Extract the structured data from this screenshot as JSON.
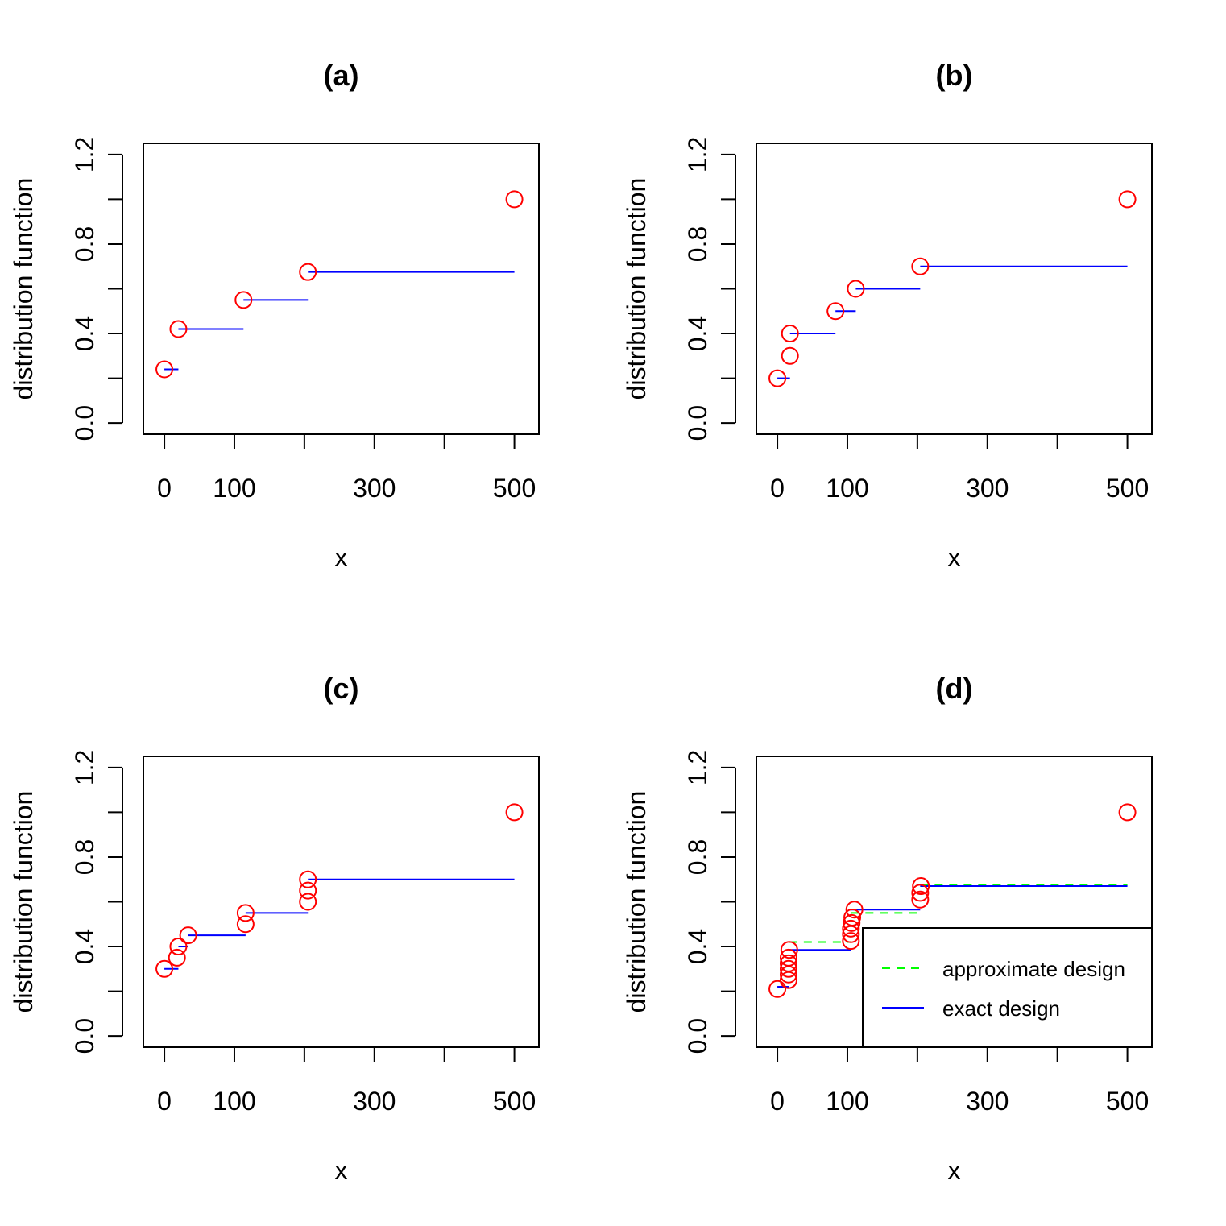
{
  "colors": {
    "points": "#ff0000",
    "exact": "#0000ff",
    "approximate": "#00ff00",
    "axes": "#000000"
  },
  "chart_data": [
    {
      "type": "step",
      "title": "(a)",
      "xlabel": "x",
      "ylabel": "distribution function",
      "xlim": [
        -30,
        535
      ],
      "ylim": [
        -0.05,
        1.25
      ],
      "xticks": [
        0,
        100,
        200,
        300,
        400,
        500
      ],
      "xtick_labels": [
        "0",
        "100",
        "",
        "300",
        "",
        "500"
      ],
      "yticks": [
        0,
        0.4,
        0.8,
        1.2
      ],
      "ytick_labels": [
        "0.0",
        "0.4",
        "0.8",
        "1.2"
      ],
      "extra_yticks": [
        0.2,
        0.6,
        1.0
      ],
      "points": {
        "x": [
          0,
          20,
          113,
          205,
          500
        ],
        "y": [
          0.24,
          0.42,
          0.55,
          0.675,
          1.0
        ]
      },
      "steps": [
        {
          "x0": 0,
          "x1": 20,
          "y": 0.24
        },
        {
          "x0": 20,
          "x1": 113,
          "y": 0.42
        },
        {
          "x0": 113,
          "x1": 205,
          "y": 0.55
        },
        {
          "x0": 205,
          "x1": 500,
          "y": 0.675
        }
      ]
    },
    {
      "type": "step",
      "title": "(b)",
      "xlabel": "x",
      "ylabel": "distribution function",
      "xlim": [
        -30,
        535
      ],
      "ylim": [
        -0.05,
        1.25
      ],
      "xticks": [
        0,
        100,
        200,
        300,
        400,
        500
      ],
      "xtick_labels": [
        "0",
        "100",
        "",
        "300",
        "",
        "500"
      ],
      "yticks": [
        0,
        0.4,
        0.8,
        1.2
      ],
      "ytick_labels": [
        "0.0",
        "0.4",
        "0.8",
        "1.2"
      ],
      "extra_yticks": [
        0.2,
        0.6,
        1.0
      ],
      "points": {
        "x": [
          0,
          18,
          18,
          83,
          112,
          204,
          500
        ],
        "y": [
          0.2,
          0.3,
          0.4,
          0.5,
          0.6,
          0.7,
          1.0
        ]
      },
      "steps": [
        {
          "x0": 0,
          "x1": 18,
          "y": 0.2
        },
        {
          "x0": 18,
          "x1": 83,
          "y": 0.4
        },
        {
          "x0": 83,
          "x1": 112,
          "y": 0.5
        },
        {
          "x0": 112,
          "x1": 204,
          "y": 0.6
        },
        {
          "x0": 204,
          "x1": 500,
          "y": 0.7
        }
      ]
    },
    {
      "type": "step",
      "title": "(c)",
      "xlabel": "x",
      "ylabel": "distribution function",
      "xlim": [
        -30,
        535
      ],
      "ylim": [
        -0.05,
        1.25
      ],
      "xticks": [
        0,
        100,
        200,
        300,
        400,
        500
      ],
      "xtick_labels": [
        "0",
        "100",
        "",
        "300",
        "",
        "500"
      ],
      "yticks": [
        0,
        0.4,
        0.8,
        1.2
      ],
      "ytick_labels": [
        "0.0",
        "0.4",
        "0.8",
        "1.2"
      ],
      "extra_yticks": [
        0.2,
        0.6,
        1.0
      ],
      "points": {
        "x": [
          0,
          18,
          20,
          34,
          116,
          116,
          205,
          205,
          205,
          500
        ],
        "y": [
          0.3,
          0.35,
          0.4,
          0.45,
          0.5,
          0.55,
          0.6,
          0.65,
          0.7,
          1.0
        ]
      },
      "steps": [
        {
          "x0": 0,
          "x1": 20,
          "y": 0.3
        },
        {
          "x0": 20,
          "x1": 34,
          "y": 0.4
        },
        {
          "x0": 34,
          "x1": 116,
          "y": 0.45
        },
        {
          "x0": 116,
          "x1": 205,
          "y": 0.55
        },
        {
          "x0": 205,
          "x1": 500,
          "y": 0.7
        }
      ]
    },
    {
      "type": "step",
      "title": "(d)",
      "xlabel": "x",
      "ylabel": "distribution function",
      "xlim": [
        -30,
        535
      ],
      "ylim": [
        -0.05,
        1.25
      ],
      "xticks": [
        0,
        100,
        200,
        300,
        400,
        500
      ],
      "xtick_labels": [
        "0",
        "100",
        "",
        "300",
        "",
        "500"
      ],
      "yticks": [
        0,
        0.4,
        0.8,
        1.2
      ],
      "ytick_labels": [
        "0.0",
        "0.4",
        "0.8",
        "1.2"
      ],
      "extra_yticks": [
        0.2,
        0.6,
        1.0
      ],
      "points": {
        "x": [
          0,
          16,
          16,
          16,
          16,
          16,
          17,
          105,
          105,
          105,
          106,
          107,
          110,
          204,
          204,
          205,
          500
        ],
        "y": [
          0.21,
          0.25,
          0.275,
          0.3,
          0.325,
          0.35,
          0.385,
          0.425,
          0.455,
          0.48,
          0.505,
          0.53,
          0.565,
          0.61,
          0.64,
          0.67,
          1.0
        ]
      },
      "steps": [
        {
          "x0": 0,
          "x1": 17,
          "y": 0.22
        },
        {
          "x0": 17,
          "x1": 105,
          "y": 0.385
        },
        {
          "x0": 105,
          "x1": 204,
          "y": 0.565
        },
        {
          "x0": 204,
          "x1": 500,
          "y": 0.67
        }
      ],
      "approx_steps": [
        {
          "x0": 17,
          "x1": 105,
          "y": 0.42
        },
        {
          "x0": 105,
          "x1": 204,
          "y": 0.55
        },
        {
          "x0": 204,
          "x1": 500,
          "y": 0.675
        }
      ],
      "legend": {
        "position": "bottom-right",
        "entries": [
          {
            "label": "approximate design",
            "style": "dashed",
            "color": "#00ff00"
          },
          {
            "label": "exact design",
            "style": "solid",
            "color": "#0000ff"
          }
        ]
      }
    }
  ]
}
